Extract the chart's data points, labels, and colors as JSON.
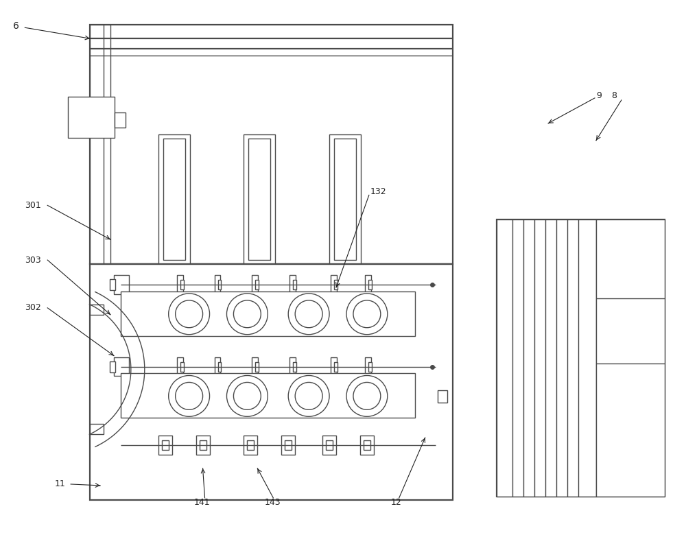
{
  "bg_color": "#ffffff",
  "lc": "#4a4a4a",
  "lw": 1.0,
  "lw2": 1.6,
  "fig_w": 10.0,
  "fig_h": 7.99
}
